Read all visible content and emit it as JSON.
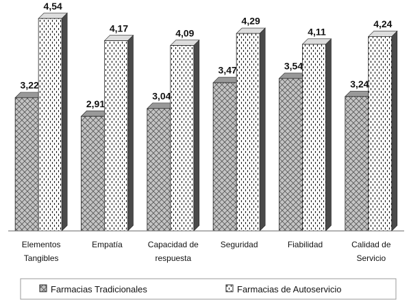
{
  "chart_data": {
    "type": "bar3d",
    "categories": [
      "Elementos Tangibles",
      "Empatía",
      "Capacidad de respuesta",
      "Seguridad",
      "Fiabilidad",
      "Calidad de Servicio"
    ],
    "series": [
      {
        "name": "Farmacias Tradicionales",
        "color": "#bdbdbd",
        "values": [
          3.22,
          2.91,
          3.04,
          3.47,
          3.54,
          3.24
        ],
        "value_labels": [
          "3,22",
          "2,91",
          "3,04",
          "3,47",
          "3,54",
          "3,24"
        ]
      },
      {
        "name": "Farmacias de Autoservicio",
        "color": "#ffffff",
        "values": [
          4.54,
          4.17,
          4.09,
          4.29,
          4.11,
          4.24
        ],
        "value_labels": [
          "4,54",
          "4,17",
          "4,09",
          "4,29",
          "4,11",
          "4,24"
        ]
      }
    ],
    "ylim": [
      1,
      4.7
    ],
    "legend": "bottom"
  }
}
